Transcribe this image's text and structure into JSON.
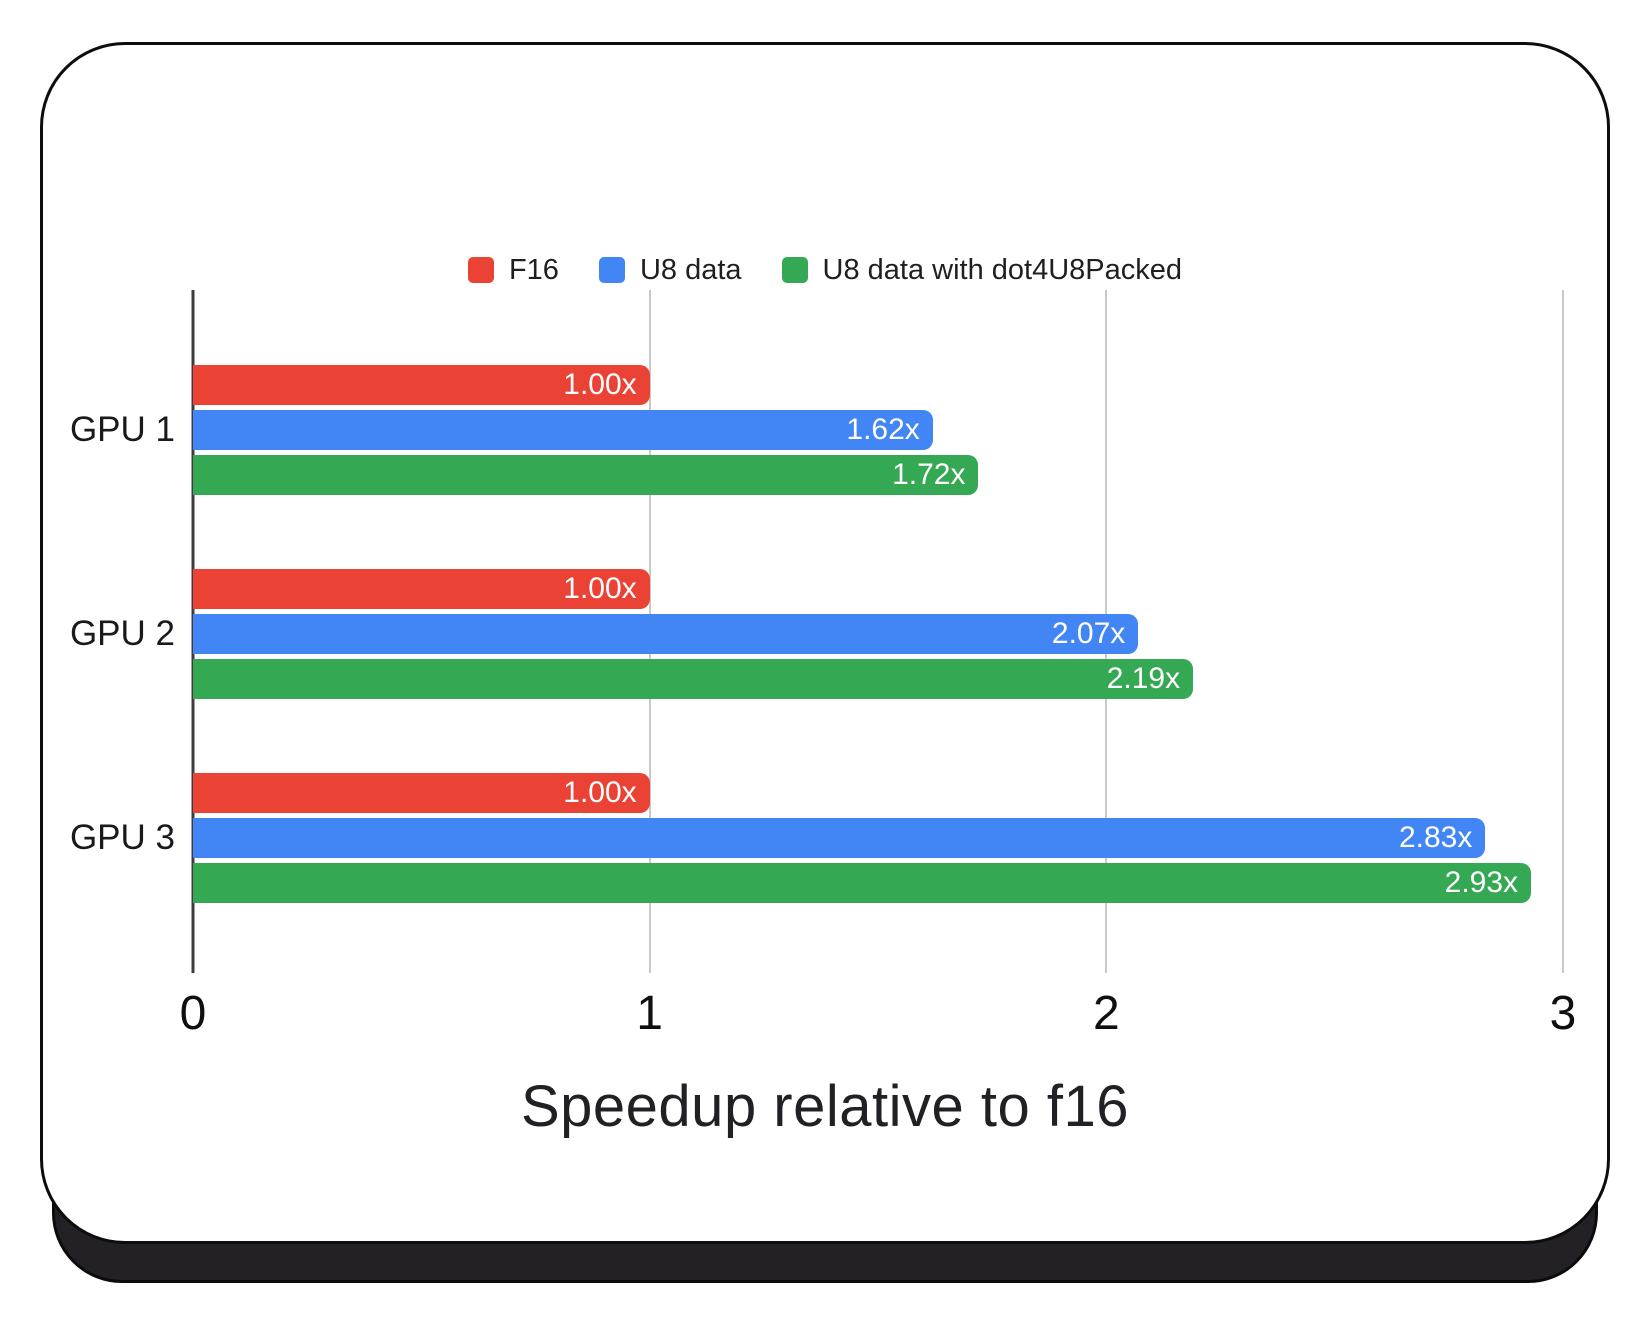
{
  "chart_data": {
    "type": "bar",
    "orientation": "horizontal",
    "xlabel": "Speedup relative to f16",
    "xlim": [
      0,
      3
    ],
    "xticks": [
      0,
      1,
      2,
      3
    ],
    "grid": true,
    "legend_position": "top",
    "categories": [
      "GPU 1",
      "GPU 2",
      "GPU 3"
    ],
    "series": [
      {
        "name": "F16",
        "color": "#EA4335",
        "values": [
          1.0,
          1.0,
          1.0
        ],
        "value_labels": [
          "1.00x",
          "1.00x",
          "1.00x"
        ]
      },
      {
        "name": "U8 data",
        "color": "#4285F4",
        "values": [
          1.62,
          2.07,
          2.83
        ],
        "value_labels": [
          "1.62x",
          "2.07x",
          "2.83x"
        ]
      },
      {
        "name": "U8 data with dot4U8Packed",
        "color": "#34A853",
        "values": [
          1.72,
          2.19,
          2.93
        ],
        "value_labels": [
          "1.72x",
          "2.19x",
          "2.93x"
        ]
      }
    ]
  },
  "colors": {
    "background": "#ffffff",
    "card_background": "#ffffff",
    "card_border": "#0d0d0d",
    "card_shadow": "#232126",
    "gridline": "#c9c9c9",
    "axis_line": "#3c3c3c",
    "text": "#1a1a1a",
    "value_label_text": "#ffffff"
  }
}
